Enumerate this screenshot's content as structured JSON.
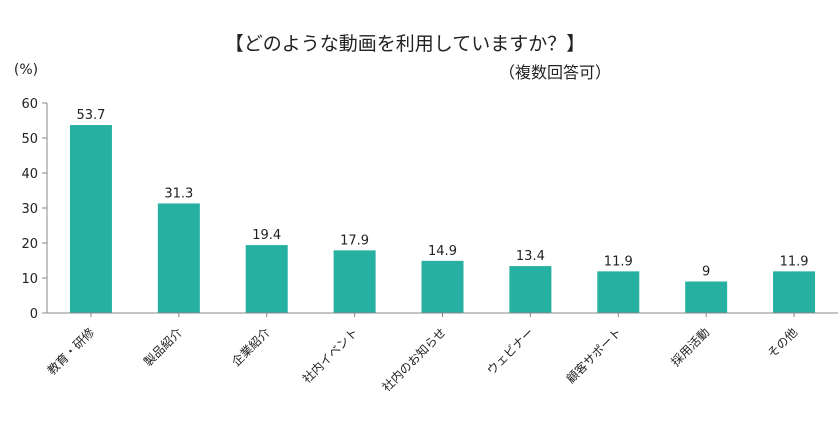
{
  "chart_data": {
    "type": "bar",
    "title": "【どのような動画を利用していますか？】",
    "subtitle": "（複数回答可）",
    "ylabel": "(%)",
    "xlabel": "",
    "ylim": [
      0,
      60
    ],
    "yticks": [
      0,
      10,
      20,
      30,
      40,
      50,
      60
    ],
    "grid": false,
    "legend": "none",
    "bar_color": "#26b0a2",
    "categories": [
      "教育・研修",
      "製品紹介",
      "企業紹介",
      "社内イベント",
      "社内のお知らせ",
      "ウェビナー",
      "顧客サポート",
      "採用活動",
      "その他"
    ],
    "values": [
      53.7,
      31.3,
      19.4,
      17.9,
      14.9,
      13.4,
      11.9,
      9,
      11.9
    ],
    "value_labels": [
      "53.7",
      "31.3",
      "19.4",
      "17.9",
      "14.9",
      "13.4",
      "11.9",
      "9",
      "11.9"
    ]
  }
}
